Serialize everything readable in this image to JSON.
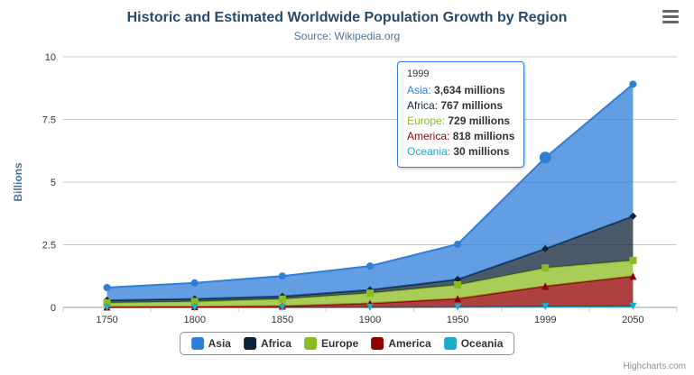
{
  "chart": {
    "title": "Historic and Estimated Worldwide Population Growth by Region",
    "subtitle": "Source: Wikipedia.org",
    "credits": "Highcharts.com"
  },
  "tooltip": {
    "header": "1999",
    "rows": [
      {
        "series": "Asia",
        "value": "3,634 millions"
      },
      {
        "series": "Africa",
        "value": "767 millions"
      },
      {
        "series": "Europe",
        "value": "729 millions"
      },
      {
        "series": "America",
        "value": "818 millions"
      },
      {
        "series": "Oceania",
        "value": "30 millions"
      }
    ]
  },
  "chart_data": {
    "type": "area",
    "stacking": "normal",
    "reversed_stacks": true,
    "title": "Historic and Estimated Worldwide Population Growth by Region",
    "subtitle": "Source: Wikipedia.org",
    "xlabel": "",
    "ylabel": "Billions",
    "unit": "millions",
    "categories": [
      "1750",
      "1800",
      "1850",
      "1900",
      "1950",
      "1999",
      "2050"
    ],
    "series": [
      {
        "name": "Asia",
        "color": "#2f7ed8",
        "marker": "circle",
        "values_millions": [
          502,
          635,
          809,
          947,
          1402,
          3634,
          5268
        ]
      },
      {
        "name": "Africa",
        "color": "#0d233a",
        "marker": "diamond",
        "values_millions": [
          106,
          107,
          111,
          133,
          221,
          767,
          1766
        ]
      },
      {
        "name": "Europe",
        "color": "#8bbc21",
        "marker": "square",
        "values_millions": [
          163,
          203,
          276,
          408,
          547,
          729,
          628
        ]
      },
      {
        "name": "America",
        "color": "#910000",
        "marker": "triangle",
        "values_millions": [
          18,
          31,
          54,
          156,
          339,
          818,
          1201
        ]
      },
      {
        "name": "Oceania",
        "color": "#1aadce",
        "marker": "triangle-down",
        "values_millions": [
          2,
          2,
          2,
          6,
          13,
          30,
          46
        ]
      }
    ],
    "yticks": [
      0,
      2.5,
      5,
      7.5,
      10
    ],
    "ylim_billions": [
      0,
      10
    ],
    "grid": true,
    "legend_position": "bottom",
    "hover": {
      "category": "1999",
      "series": "Asia"
    }
  }
}
